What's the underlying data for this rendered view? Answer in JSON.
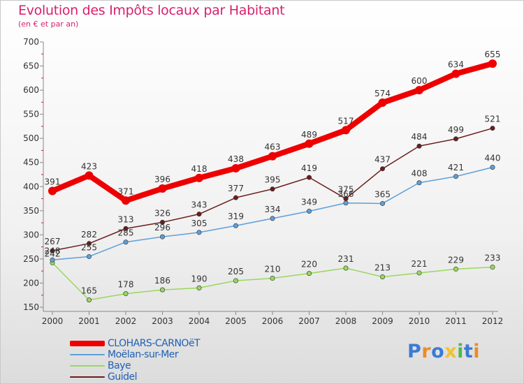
{
  "header": {
    "title": "Evolution des Impôts locaux par Habitant",
    "subtitle": "(en € et par an)"
  },
  "logo": {
    "text": "Proxiti",
    "colors": [
      "#3a7bd5",
      "#f08a24",
      "#3a7bd5",
      "#f2c12e",
      "#4fb84a",
      "#3a7bd5",
      "#f08a24"
    ]
  },
  "chart_data": {
    "type": "line",
    "x": [
      "2000",
      "2001",
      "2002",
      "2003",
      "2004",
      "2005",
      "2006",
      "2007",
      "2008",
      "2009",
      "2010",
      "2011",
      "2012"
    ],
    "ylim": [
      150,
      700
    ],
    "yticks": [
      150,
      200,
      250,
      300,
      350,
      400,
      450,
      500,
      550,
      600,
      650,
      700
    ],
    "grid": false,
    "legend": "bottom-left",
    "series": [
      {
        "name": "CLOHARS-CARNOëT",
        "color": "#ee0000",
        "values": [
          391,
          423,
          371,
          396,
          418,
          438,
          463,
          489,
          517,
          574,
          600,
          634,
          655
        ]
      },
      {
        "name": "Moëlan-sur-Mer",
        "color": "#5e9fd8",
        "values": [
          248,
          255,
          285,
          296,
          305,
          319,
          334,
          349,
          366,
          365,
          408,
          421,
          440
        ]
      },
      {
        "name": "Baye",
        "color": "#98d85b",
        "values": [
          242,
          165,
          178,
          186,
          190,
          205,
          210,
          220,
          231,
          213,
          221,
          229,
          233
        ]
      },
      {
        "name": "Guidel",
        "color": "#6b1d1d",
        "values": [
          267,
          282,
          313,
          326,
          343,
          377,
          395,
          419,
          375,
          437,
          484,
          499,
          521
        ]
      }
    ]
  }
}
